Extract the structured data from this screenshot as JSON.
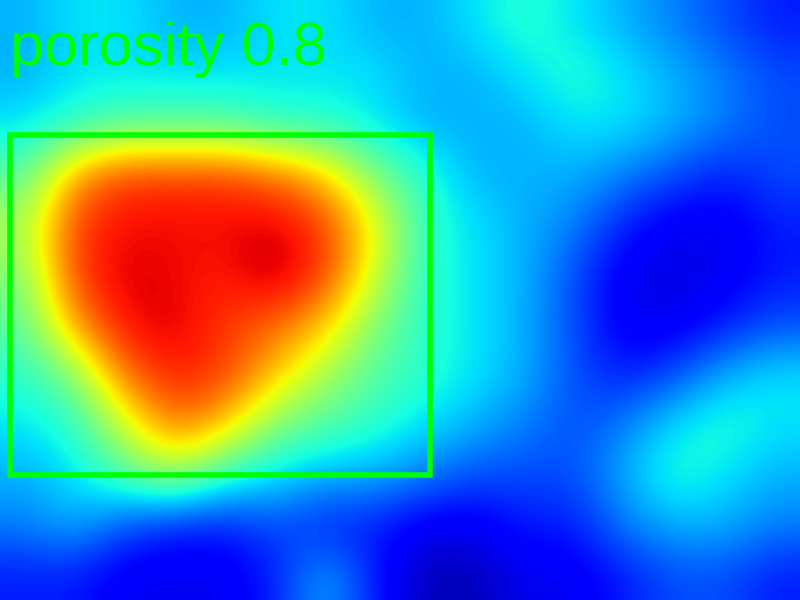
{
  "chart_data": {
    "type": "heatmap",
    "color": "jet",
    "tick_labels": false,
    "annotations": [
      "porosity 0.8"
    ],
    "color_range": [
      0,
      1
    ],
    "cells": [
      [
        0.3,
        0.35,
        0.35,
        0.3,
        0.3,
        0.35,
        0.35,
        0.3,
        0.3,
        0.35,
        0.4,
        0.35,
        0.3,
        0.25,
        0.2,
        0.15
      ],
      [
        0.3,
        0.35,
        0.35,
        0.35,
        0.35,
        0.35,
        0.35,
        0.35,
        0.3,
        0.3,
        0.35,
        0.4,
        0.35,
        0.3,
        0.25,
        0.2
      ],
      [
        0.35,
        0.4,
        0.45,
        0.45,
        0.45,
        0.4,
        0.4,
        0.35,
        0.3,
        0.3,
        0.3,
        0.35,
        0.35,
        0.3,
        0.25,
        0.2
      ],
      [
        0.45,
        0.75,
        0.85,
        0.85,
        0.85,
        0.8,
        0.7,
        0.5,
        0.4,
        0.3,
        0.3,
        0.3,
        0.25,
        0.2,
        0.15,
        0.2
      ],
      [
        0.55,
        0.85,
        0.9,
        0.9,
        0.9,
        0.92,
        0.85,
        0.65,
        0.4,
        0.35,
        0.3,
        0.25,
        0.15,
        0.1,
        0.1,
        0.15
      ],
      [
        0.5,
        0.85,
        0.92,
        0.9,
        0.88,
        0.95,
        0.85,
        0.6,
        0.4,
        0.35,
        0.3,
        0.2,
        0.1,
        0.08,
        0.1,
        0.15
      ],
      [
        0.45,
        0.75,
        0.9,
        0.92,
        0.85,
        0.8,
        0.7,
        0.5,
        0.4,
        0.35,
        0.3,
        0.2,
        0.1,
        0.1,
        0.15,
        0.2
      ],
      [
        0.4,
        0.5,
        0.8,
        0.88,
        0.85,
        0.7,
        0.55,
        0.45,
        0.4,
        0.35,
        0.3,
        0.2,
        0.15,
        0.2,
        0.3,
        0.35
      ],
      [
        0.35,
        0.4,
        0.6,
        0.8,
        0.7,
        0.5,
        0.45,
        0.4,
        0.35,
        0.3,
        0.25,
        0.2,
        0.25,
        0.35,
        0.4,
        0.35
      ],
      [
        0.3,
        0.35,
        0.45,
        0.55,
        0.4,
        0.35,
        0.3,
        0.3,
        0.25,
        0.2,
        0.2,
        0.2,
        0.3,
        0.4,
        0.35,
        0.3
      ],
      [
        0.25,
        0.3,
        0.2,
        0.15,
        0.15,
        0.2,
        0.15,
        0.15,
        0.1,
        0.1,
        0.15,
        0.15,
        0.25,
        0.3,
        0.3,
        0.25
      ],
      [
        0.15,
        0.15,
        0.1,
        0.1,
        0.1,
        0.15,
        0.3,
        0.15,
        0.05,
        0.05,
        0.1,
        0.1,
        0.15,
        0.2,
        0.2,
        0.15
      ]
    ]
  }
}
